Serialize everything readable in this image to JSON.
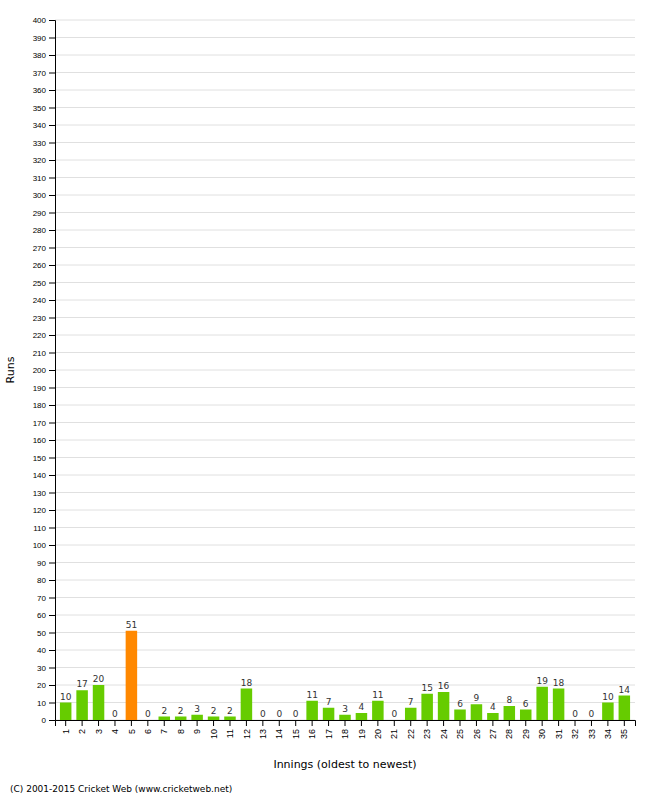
{
  "chart_data": {
    "type": "bar",
    "xlabel": "Innings (oldest to newest)",
    "ylabel": "Runs",
    "annotations": [
      "(C) 2001-2015 Cricket Web (www.cricketweb.net)"
    ],
    "categories": [
      "1",
      "2",
      "3",
      "4",
      "5",
      "6",
      "7",
      "8",
      "9",
      "10",
      "11",
      "12",
      "13",
      "14",
      "15",
      "16",
      "17",
      "18",
      "19",
      "20",
      "21",
      "22",
      "23",
      "24",
      "25",
      "26",
      "27",
      "28",
      "29",
      "30",
      "31",
      "32",
      "33",
      "34",
      "35"
    ],
    "values": [
      10,
      17,
      20,
      0,
      51,
      0,
      2,
      2,
      3,
      2,
      2,
      18,
      0,
      0,
      0,
      11,
      7,
      3,
      4,
      11,
      0,
      7,
      15,
      16,
      6,
      9,
      4,
      8,
      6,
      19,
      18,
      0,
      0,
      10,
      14
    ],
    "colors": [
      "#66cc00",
      "#66cc00",
      "#66cc00",
      "#66cc00",
      "#ff8800",
      "#66cc00",
      "#66cc00",
      "#66cc00",
      "#66cc00",
      "#66cc00",
      "#66cc00",
      "#66cc00",
      "#66cc00",
      "#66cc00",
      "#66cc00",
      "#66cc00",
      "#66cc00",
      "#66cc00",
      "#66cc00",
      "#66cc00",
      "#66cc00",
      "#66cc00",
      "#66cc00",
      "#66cc00",
      "#66cc00",
      "#66cc00",
      "#66cc00",
      "#66cc00",
      "#66cc00",
      "#66cc00",
      "#66cc00",
      "#66cc00",
      "#66cc00",
      "#66cc00",
      "#66cc00"
    ],
    "ylim": [
      0,
      400
    ],
    "yticks": [
      0,
      10,
      20,
      30,
      40,
      50,
      60,
      70,
      80,
      90,
      100,
      110,
      120,
      130,
      140,
      150,
      160,
      170,
      180,
      190,
      200,
      210,
      220,
      230,
      240,
      250,
      260,
      270,
      280,
      290,
      300,
      310,
      320,
      330,
      340,
      350,
      360,
      370,
      380,
      390,
      400
    ],
    "grid": true,
    "data_labels": true
  }
}
